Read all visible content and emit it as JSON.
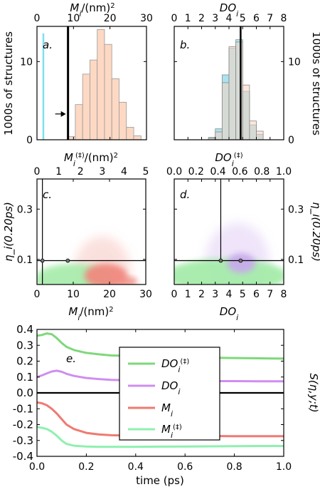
{
  "chart_data": [
    {
      "panel": "a.",
      "type": "bar",
      "bins": [
        8.5,
        10.5,
        12.5,
        14.5,
        16.5,
        18.5,
        20.5,
        22.5,
        24.5,
        26.5
      ],
      "values": [
        0.4,
        4.5,
        8.4,
        10.2,
        14.1,
        12.2,
        7.8,
        4.8,
        1.6,
        0.5
      ],
      "xlim": [
        0,
        30
      ],
      "ylim": [
        0,
        14.5
      ],
      "xticks": [
        0,
        10,
        20,
        30
      ],
      "yticks": [
        0,
        10
      ],
      "xlabel": "M_i/(nm)^2",
      "ylabel": "1000s of structures",
      "vline": 8.5,
      "cyan_spike_x": 1.7,
      "colors": {
        "bars": "#fdd8c3",
        "spike": "#7fe0f0"
      }
    },
    {
      "panel": "b.",
      "type": "bar",
      "bins": [
        2.5,
        3.0,
        3.5,
        4.0,
        4.5,
        5.0,
        5.5,
        6.0
      ],
      "series": [
        {
          "values": [
            0.3,
            1.4,
            8.3,
            11.7,
            12.8,
            6.2,
            1.9,
            0.7
          ],
          "color": "#a4e2ef"
        },
        {
          "values": [
            0.2,
            1.0,
            7.3,
            11.9,
            12.5,
            7.0,
            2.4,
            1.1
          ],
          "color": "#fcd4c0"
        }
      ],
      "xlim": [
        0,
        8
      ],
      "ylim": [
        0,
        14.5
      ],
      "xticks": [
        0,
        1,
        2,
        3,
        4,
        5,
        6,
        7,
        8
      ],
      "yticks": [
        0,
        10
      ],
      "xlabel": "DO_i",
      "ylabel": "1000s of structures",
      "vline": 4.85
    },
    {
      "panel": "c.",
      "type": "scatter",
      "xlim": [
        0,
        30
      ],
      "ylim": [
        0,
        0.42
      ],
      "xticks": [
        0,
        10,
        20,
        30
      ],
      "yticks": [
        0.1,
        0.3
      ],
      "xlabel": "M_i/(nm)^2",
      "ylabel": "η_i(0.20ps)",
      "top_xlim": [
        0,
        5
      ],
      "top_xticks": [
        0,
        1,
        2,
        3,
        4,
        5
      ],
      "top_xlabel": "M_i^(‡)/(nm)^2",
      "hline": 0.095,
      "vline": 1.5,
      "markers": [
        [
          1.5,
          0.095
        ],
        [
          8.5,
          0.095
        ]
      ],
      "colors": {
        "cloud_red": "#f08a80",
        "cloud_green": "#a6ecaa"
      }
    },
    {
      "panel": "d.",
      "type": "scatter",
      "xlim": [
        0,
        8
      ],
      "ylim": [
        0,
        0.42
      ],
      "xticks": [
        0,
        1,
        2,
        3,
        4,
        5,
        6,
        7,
        8
      ],
      "yticks": [
        0.1,
        0.3
      ],
      "xlabel": "DO_i",
      "ylabel": "η_i(0.20ps)",
      "top_xlim": [
        0,
        1.0
      ],
      "top_xticks": [
        0.0,
        0.2,
        0.4,
        0.6,
        0.8,
        1.0
      ],
      "top_xlabel": "DO_i^(‡)",
      "hline": 0.095,
      "vline": 3.4,
      "markers": [
        [
          3.4,
          0.095
        ],
        [
          4.85,
          0.095
        ]
      ],
      "colors": {
        "cloud_purple": "#c9a8ee",
        "cloud_green": "#a6ecaa"
      }
    },
    {
      "panel": "e.",
      "type": "line",
      "xlim": [
        0,
        1.0
      ],
      "ylim": [
        -0.4,
        0.4
      ],
      "xticks": [
        0.0,
        0.2,
        0.4,
        0.6,
        0.8,
        1.0
      ],
      "yticks": [
        -0.4,
        -0.3,
        -0.2,
        -0.1,
        0.0,
        0.1,
        0.2,
        0.3,
        0.4
      ],
      "xlabel": "time (ps)",
      "ylabel": "S(η,y;t)",
      "series": [
        {
          "name": "DO_i^(‡)",
          "color": "#7ed87a",
          "x": [
            0.0,
            0.02,
            0.04,
            0.06,
            0.08,
            0.1,
            0.12,
            0.15,
            0.2,
            0.25,
            0.3,
            0.4,
            0.5,
            0.6,
            0.7,
            0.8,
            0.9,
            1.0
          ],
          "y": [
            0.36,
            0.365,
            0.375,
            0.37,
            0.345,
            0.315,
            0.29,
            0.27,
            0.252,
            0.243,
            0.236,
            0.232,
            0.228,
            0.224,
            0.222,
            0.22,
            0.218,
            0.216
          ]
        },
        {
          "name": "DO_i",
          "color": "#cf8ef0",
          "x": [
            0.0,
            0.02,
            0.04,
            0.06,
            0.08,
            0.1,
            0.12,
            0.15,
            0.2,
            0.25,
            0.3,
            0.4,
            0.5,
            0.6,
            0.7,
            0.8,
            0.9,
            1.0
          ],
          "y": [
            0.1,
            0.11,
            0.123,
            0.135,
            0.14,
            0.133,
            0.12,
            0.107,
            0.094,
            0.087,
            0.082,
            0.078,
            0.076,
            0.075,
            0.074,
            0.074,
            0.073,
            0.073
          ]
        },
        {
          "name": "M_i",
          "color": "#ef7a72",
          "x": [
            0.0,
            0.02,
            0.04,
            0.06,
            0.08,
            0.1,
            0.12,
            0.15,
            0.2,
            0.25,
            0.3,
            0.4,
            0.5,
            0.6,
            0.7,
            0.8,
            0.9,
            1.0
          ],
          "y": [
            -0.06,
            -0.065,
            -0.078,
            -0.1,
            -0.13,
            -0.165,
            -0.2,
            -0.228,
            -0.252,
            -0.262,
            -0.267,
            -0.27,
            -0.271,
            -0.272,
            -0.272,
            -0.273,
            -0.273,
            -0.273
          ]
        },
        {
          "name": "M_i^(‡)",
          "color": "#8ff0b0",
          "x": [
            0.0,
            0.02,
            0.04,
            0.06,
            0.08,
            0.1,
            0.12,
            0.15,
            0.2,
            0.25,
            0.3,
            0.4,
            0.5,
            0.6,
            0.7,
            0.8,
            0.9,
            1.0
          ],
          "y": [
            -0.215,
            -0.22,
            -0.228,
            -0.245,
            -0.27,
            -0.3,
            -0.322,
            -0.333,
            -0.338,
            -0.34,
            -0.34,
            -0.34,
            -0.339,
            -0.338,
            -0.337,
            -0.336,
            -0.335,
            -0.335
          ]
        }
      ],
      "legend_placement": "center"
    }
  ]
}
